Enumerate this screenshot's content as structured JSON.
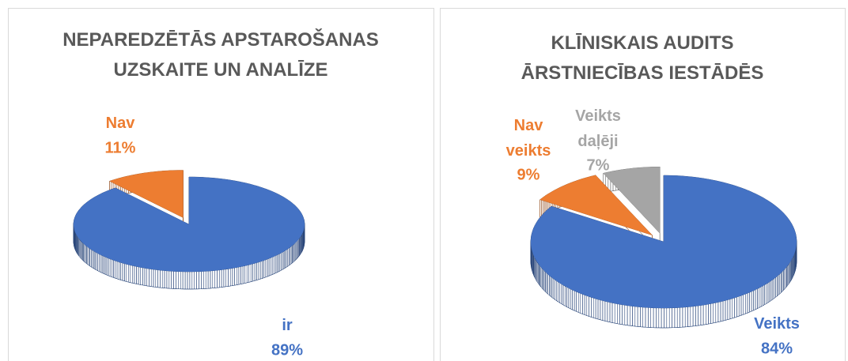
{
  "chart_data": [
    {
      "type": "pie",
      "title": "NEPAREDZĒTĀS APSTAROŠANAS UZSKAITE UN ANALĪZE",
      "categories": [
        "ir",
        "Nav"
      ],
      "values": [
        89,
        11
      ],
      "value_labels": [
        "89%",
        "11%"
      ],
      "colors": [
        "#4472c4",
        "#ed7d31"
      ]
    },
    {
      "type": "pie",
      "title": "KLĪNISKAIS AUDITS ĀRSTNIECĪBAS IESTĀDĒS",
      "categories": [
        "Veikts",
        "Nav veikts",
        "Veikts daļēji"
      ],
      "values": [
        84,
        9,
        7
      ],
      "value_labels": [
        "84%",
        "9%",
        "7%"
      ],
      "colors": [
        "#4472c4",
        "#ed7d31",
        "#a5a5a5"
      ]
    }
  ]
}
